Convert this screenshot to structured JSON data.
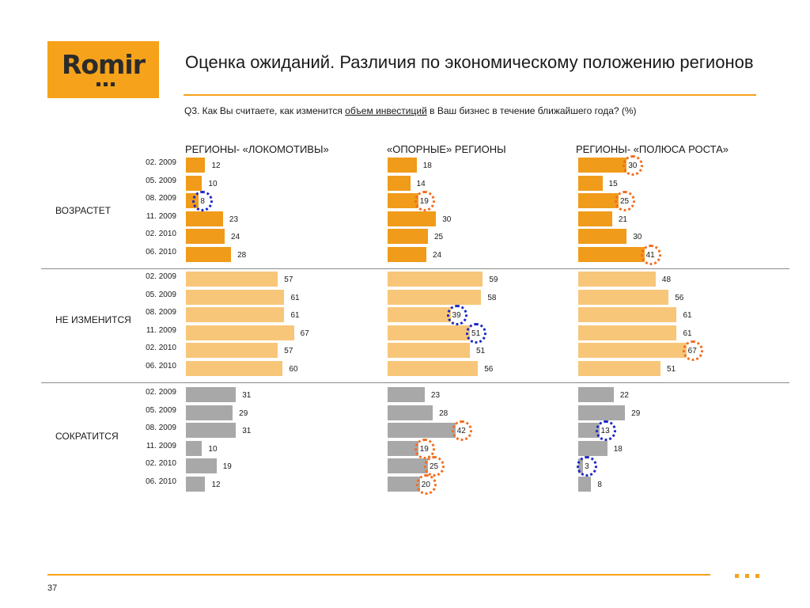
{
  "logo": {
    "text": "Romir"
  },
  "title": "Оценка ожиданий. Различия по экономическому положению регионов",
  "question": {
    "prefix": "Q3. Как Вы считаете, как изменится ",
    "highlight": "объем инвестиций",
    "suffix": " в Ваш бизнес в течение ближайшего года? (%)"
  },
  "page_number": "37",
  "colors": {
    "accent": "#f6a21a",
    "increase": "#f09b19",
    "no_change": "#f7c679",
    "decrease": "#a8a8a8",
    "circle_orange": "#f26d21",
    "circle_blue": "#1c27c6"
  },
  "chart_data": {
    "type": "bar",
    "orientation": "horizontal",
    "dates": [
      "02. 2009",
      "05. 2009",
      "08. 2009",
      "11. 2009",
      "02. 2010",
      "06. 2010"
    ],
    "groups": [
      {
        "name": "РЕГИОНЫ- «ЛОКОМОТИВЫ»"
      },
      {
        "name": "«ОПОРНЫЕ» РЕГИОНЫ"
      },
      {
        "name": "РЕГИОНЫ- «ПОЛЮСА РОСТА»"
      }
    ],
    "rows": [
      {
        "label": "ВОЗРАСТЕТ",
        "values": [
          [
            12,
            10,
            8,
            23,
            24,
            28
          ],
          [
            18,
            14,
            19,
            30,
            25,
            24
          ],
          [
            30,
            15,
            25,
            21,
            30,
            41
          ]
        ]
      },
      {
        "label": "НЕ ИЗМЕНИТСЯ",
        "values": [
          [
            57,
            61,
            61,
            67,
            57,
            60
          ],
          [
            59,
            58,
            39,
            51,
            51,
            56
          ],
          [
            48,
            56,
            61,
            61,
            67,
            51
          ]
        ]
      },
      {
        "label": "СОКРАТИТСЯ",
        "values": [
          [
            31,
            29,
            31,
            10,
            19,
            12
          ],
          [
            23,
            28,
            42,
            19,
            25,
            20
          ],
          [
            22,
            29,
            13,
            18,
            3,
            8
          ]
        ]
      }
    ],
    "highlights": [
      {
        "row": 0,
        "group": 0,
        "date": 2,
        "color": "blue"
      },
      {
        "row": 0,
        "group": 1,
        "date": 2,
        "color": "orange"
      },
      {
        "row": 0,
        "group": 2,
        "date": 0,
        "color": "orange"
      },
      {
        "row": 0,
        "group": 2,
        "date": 2,
        "color": "orange"
      },
      {
        "row": 0,
        "group": 2,
        "date": 5,
        "color": "orange"
      },
      {
        "row": 1,
        "group": 1,
        "date": 2,
        "color": "blue"
      },
      {
        "row": 1,
        "group": 1,
        "date": 3,
        "color": "blue"
      },
      {
        "row": 1,
        "group": 2,
        "date": 4,
        "color": "orange"
      },
      {
        "row": 2,
        "group": 1,
        "date": 2,
        "color": "orange"
      },
      {
        "row": 2,
        "group": 1,
        "date": 3,
        "color": "orange"
      },
      {
        "row": 2,
        "group": 1,
        "date": 4,
        "color": "orange"
      },
      {
        "row": 2,
        "group": 1,
        "date": 5,
        "color": "orange"
      },
      {
        "row": 2,
        "group": 2,
        "date": 2,
        "color": "blue"
      },
      {
        "row": 2,
        "group": 2,
        "date": 4,
        "color": "blue"
      }
    ]
  }
}
